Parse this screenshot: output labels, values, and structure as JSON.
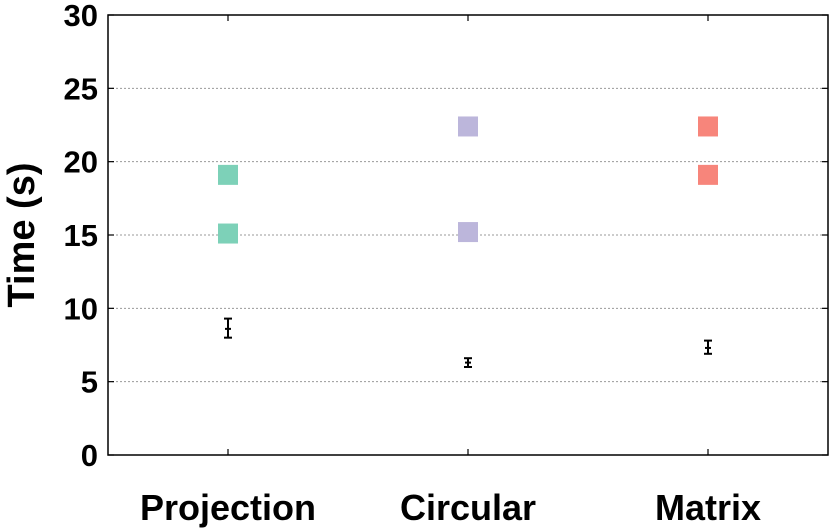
{
  "chart_data": {
    "type": "scatter",
    "title": "",
    "xlabel": "",
    "ylabel": "Time (s)",
    "ylim": [
      0,
      30
    ],
    "yticks": [
      "0",
      "5",
      "10",
      "15",
      "20",
      "25",
      "30"
    ],
    "categories": [
      "Projection",
      "Circular",
      "Matrix"
    ],
    "grid": true,
    "markers": [
      {
        "category": "Projection",
        "values": [
          19.1,
          15.1
        ],
        "color": "#7dd1b8"
      },
      {
        "category": "Circular",
        "values": [
          22.4,
          15.2
        ],
        "color": "#bcb6db"
      },
      {
        "category": "Matrix",
        "values": [
          22.4,
          19.1
        ],
        "color": "#f7857b"
      }
    ],
    "error_bars": [
      {
        "category": "Projection",
        "mean": 8.6,
        "low": 8.0,
        "high": 9.3
      },
      {
        "category": "Circular",
        "mean": 6.3,
        "low": 6.0,
        "high": 6.6
      },
      {
        "category": "Matrix",
        "mean": 7.3,
        "low": 6.9,
        "high": 7.8
      }
    ]
  }
}
